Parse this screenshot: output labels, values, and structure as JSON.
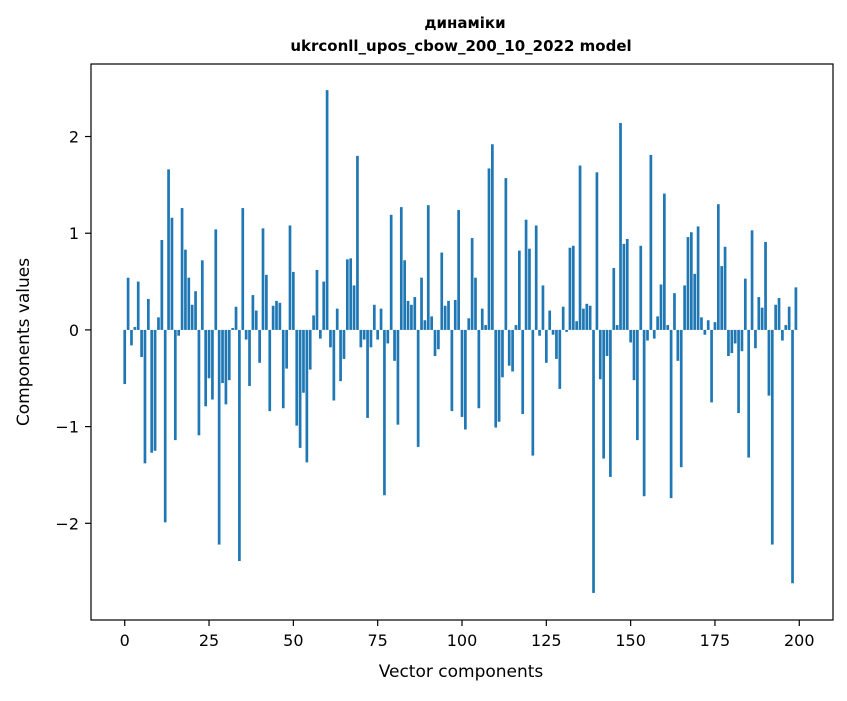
{
  "chart_data": {
    "type": "bar",
    "title": "динаміки",
    "subtitle": "ukrconll_upos_cbow_200_10_2022 model",
    "xlabel": "Vector components",
    "ylabel": "Components values",
    "xlim": [
      -10,
      210
    ],
    "ylim": [
      -3.0,
      2.75
    ],
    "xticks": [
      0,
      25,
      50,
      75,
      100,
      125,
      150,
      175,
      200
    ],
    "xtick_labels": [
      "0",
      "25",
      "50",
      "75",
      "100",
      "125",
      "150",
      "175",
      "200"
    ],
    "yticks": [
      -2,
      -1,
      0,
      1,
      2
    ],
    "ytick_labels": [
      "−2",
      "−1",
      "0",
      "1",
      "2"
    ],
    "bar_color": "#1f77b4",
    "grid": false,
    "legend": "none",
    "x": [
      0,
      1,
      2,
      3,
      4,
      5,
      6,
      7,
      8,
      9,
      10,
      11,
      12,
      13,
      14,
      15,
      16,
      17,
      18,
      19,
      20,
      21,
      22,
      23,
      24,
      25,
      26,
      27,
      28,
      29,
      30,
      31,
      32,
      33,
      34,
      35,
      36,
      37,
      38,
      39,
      40,
      41,
      42,
      43,
      44,
      45,
      46,
      47,
      48,
      49,
      50,
      51,
      52,
      53,
      54,
      55,
      56,
      57,
      58,
      59,
      60,
      61,
      62,
      63,
      64,
      65,
      66,
      67,
      68,
      69,
      70,
      71,
      72,
      73,
      74,
      75,
      76,
      77,
      78,
      79,
      80,
      81,
      82,
      83,
      84,
      85,
      86,
      87,
      88,
      89,
      90,
      91,
      92,
      93,
      94,
      95,
      96,
      97,
      98,
      99,
      100,
      101,
      102,
      103,
      104,
      105,
      106,
      107,
      108,
      109,
      110,
      111,
      112,
      113,
      114,
      115,
      116,
      117,
      118,
      119,
      120,
      121,
      122,
      123,
      124,
      125,
      126,
      127,
      128,
      129,
      130,
      131,
      132,
      133,
      134,
      135,
      136,
      137,
      138,
      139,
      140,
      141,
      142,
      143,
      144,
      145,
      146,
      147,
      148,
      149,
      150,
      151,
      152,
      153,
      154,
      155,
      156,
      157,
      158,
      159,
      160,
      161,
      162,
      163,
      164,
      165,
      166,
      167,
      168,
      169,
      170,
      171,
      172,
      173,
      174,
      175,
      176,
      177,
      178,
      179,
      180,
      181,
      182,
      183,
      184,
      185,
      186,
      187,
      188,
      189,
      190,
      191,
      192,
      193,
      194,
      195,
      196,
      197,
      198,
      199
    ],
    "values": [
      -0.56,
      0.54,
      -0.16,
      0.03,
      0.5,
      -0.28,
      -1.38,
      0.32,
      -1.27,
      -1.25,
      0.13,
      0.93,
      -1.99,
      1.66,
      1.16,
      -1.14,
      -0.06,
      1.26,
      0.83,
      0.54,
      0.26,
      0.4,
      -1.09,
      0.72,
      -0.79,
      -0.5,
      -0.72,
      1.04,
      -2.22,
      -0.55,
      -0.77,
      -0.52,
      0.02,
      0.24,
      -2.39,
      1.26,
      -0.1,
      -0.58,
      0.36,
      0.2,
      -0.34,
      1.05,
      0.57,
      -0.84,
      0.25,
      0.3,
      0.28,
      -0.81,
      -0.4,
      1.08,
      0.6,
      -0.99,
      -1.22,
      -0.65,
      -1.37,
      -0.41,
      0.15,
      0.62,
      -0.09,
      0.5,
      2.48,
      -0.18,
      -0.73,
      0.22,
      -0.53,
      -0.3,
      0.73,
      0.74,
      0.46,
      1.8,
      -0.18,
      -0.1,
      -0.91,
      -0.18,
      0.26,
      -0.1,
      0.22,
      -1.71,
      -0.14,
      1.19,
      -0.32,
      -0.98,
      1.27,
      0.72,
      0.3,
      0.26,
      0.34,
      -1.21,
      0.54,
      0.1,
      1.29,
      0.14,
      -0.27,
      -0.2,
      0.8,
      0.25,
      0.3,
      -0.84,
      0.31,
      1.24,
      -0.9,
      -1.03,
      0.12,
      0.95,
      0.54,
      -0.81,
      0.22,
      0.05,
      1.67,
      1.92,
      -1.01,
      -0.95,
      -0.49,
      1.57,
      -0.37,
      -0.43,
      0.05,
      0.82,
      -0.87,
      1.14,
      0.84,
      -1.3,
      1.08,
      -0.06,
      0.46,
      -0.34,
      0.2,
      -0.05,
      -0.3,
      -0.61,
      0.24,
      -0.02,
      0.85,
      0.87,
      0.09,
      1.7,
      0.22,
      0.27,
      0.25,
      -2.72,
      1.63,
      -0.51,
      -1.33,
      -0.27,
      -1.52,
      0.64,
      0.05,
      2.14,
      0.89,
      0.94,
      -0.13,
      -0.52,
      -1.14,
      0.87,
      -1.72,
      -0.11,
      1.81,
      -0.09,
      0.14,
      0.47,
      1.41,
      0.05,
      -1.74,
      0.38,
      -0.32,
      -1.42,
      0.46,
      0.96,
      1.01,
      0.58,
      1.07,
      0.13,
      -0.05,
      0.1,
      -0.75,
      0.08,
      1.3,
      0.66,
      0.86,
      -0.27,
      -0.24,
      -0.14,
      -0.86,
      -0.22,
      0.53,
      -1.32,
      1.03,
      -0.19,
      0.34,
      0.23,
      0.91,
      -0.68,
      -2.22,
      0.26,
      0.33,
      -0.11,
      0.05,
      0.24,
      -2.62,
      0.44
    ]
  }
}
